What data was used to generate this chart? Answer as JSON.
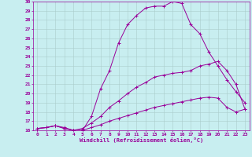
{
  "title": "",
  "xlabel": "Windchill (Refroidissement éolien,°C)",
  "bg_color": "#c8eef0",
  "line_color": "#990099",
  "grid_color": "#aacccc",
  "xlim": [
    -0.5,
    23.5
  ],
  "ylim": [
    16,
    30
  ],
  "xticks": [
    0,
    1,
    2,
    3,
    4,
    5,
    6,
    7,
    8,
    9,
    10,
    11,
    12,
    13,
    14,
    15,
    16,
    17,
    18,
    19,
    20,
    21,
    22,
    23
  ],
  "yticks": [
    16,
    17,
    18,
    19,
    20,
    21,
    22,
    23,
    24,
    25,
    26,
    27,
    28,
    29,
    30
  ],
  "line1_x": [
    0,
    1,
    2,
    3,
    4,
    5,
    6,
    7,
    8,
    9,
    10,
    11,
    12,
    13,
    14,
    15,
    16,
    17,
    18,
    19,
    20,
    21,
    22,
    23
  ],
  "line1_y": [
    16.2,
    16.3,
    16.5,
    16.2,
    16.0,
    16.0,
    16.3,
    16.6,
    17.0,
    17.3,
    17.6,
    17.9,
    18.2,
    18.5,
    18.7,
    18.9,
    19.1,
    19.3,
    19.5,
    19.6,
    19.5,
    18.5,
    18.0,
    18.3
  ],
  "line2_x": [
    0,
    1,
    2,
    3,
    4,
    5,
    6,
    7,
    8,
    9,
    10,
    11,
    12,
    13,
    14,
    15,
    16,
    17,
    18,
    19,
    20,
    21,
    22,
    23
  ],
  "line2_y": [
    16.2,
    16.3,
    16.5,
    16.2,
    16.0,
    16.2,
    16.8,
    17.5,
    18.5,
    19.2,
    20.0,
    20.7,
    21.2,
    21.8,
    22.0,
    22.2,
    22.3,
    22.5,
    23.0,
    23.2,
    23.5,
    22.5,
    21.0,
    18.3
  ],
  "line3_x": [
    0,
    1,
    2,
    3,
    4,
    5,
    6,
    7,
    8,
    9,
    10,
    11,
    12,
    13,
    14,
    15,
    16,
    17,
    18,
    19,
    20,
    21,
    22,
    23
  ],
  "line3_y": [
    16.2,
    16.3,
    16.5,
    16.3,
    16.0,
    16.0,
    17.5,
    20.5,
    22.5,
    25.5,
    27.5,
    28.5,
    29.3,
    29.5,
    29.5,
    30.0,
    29.8,
    27.5,
    26.5,
    24.5,
    23.0,
    21.5,
    20.2,
    19.0
  ]
}
